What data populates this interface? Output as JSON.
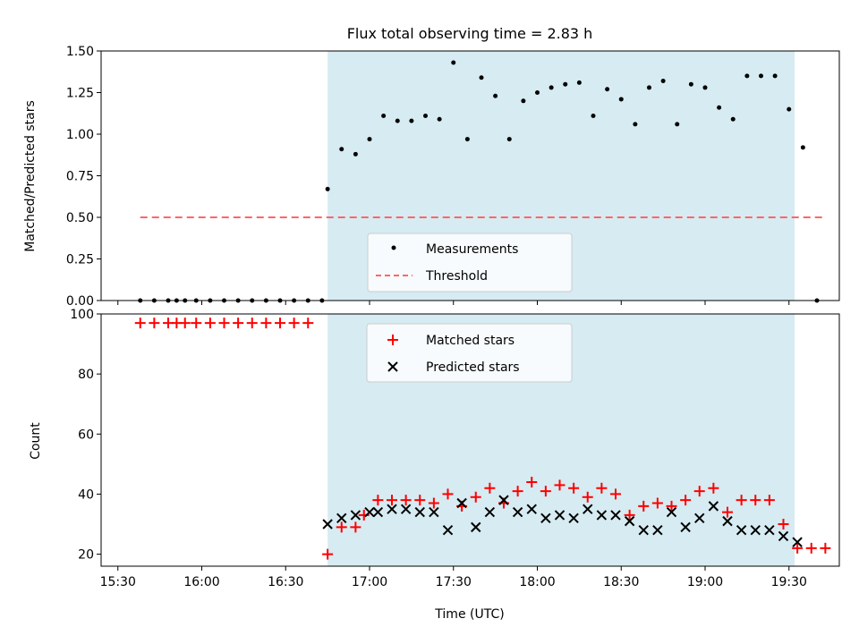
{
  "figure": {
    "title": "Flux total observing time = 2.83 h",
    "xlabel": "Time (UTC)",
    "xtick_labels": [
      "15:30",
      "16:00",
      "16:30",
      "17:00",
      "17:30",
      "18:00",
      "18:30",
      "19:00",
      "19:30"
    ],
    "shade_color": "#add8e6"
  },
  "chart_data": [
    {
      "type": "scatter",
      "title": "Flux total observing time = 2.83 h",
      "ylabel": "Matched/Predicted stars",
      "ylim": [
        0,
        1.5
      ],
      "yticks": [
        "0.00",
        "0.25",
        "0.50",
        "0.75",
        "1.00",
        "1.25",
        "1.50"
      ],
      "xlim": [
        "15:24",
        "19:48"
      ],
      "shaded_span": [
        "16:45",
        "19:32"
      ],
      "legend_position": "lower-center",
      "series": [
        {
          "name": "Measurements",
          "color": "#000000",
          "marker": "dot",
          "x": [
            "15:38",
            "15:43",
            "15:48",
            "15:51",
            "15:54",
            "15:58",
            "16:03",
            "16:08",
            "16:13",
            "16:18",
            "16:23",
            "16:28",
            "16:33",
            "16:38",
            "16:43",
            "16:45",
            "16:50",
            "16:55",
            "17:00",
            "17:05",
            "17:10",
            "17:15",
            "17:20",
            "17:25",
            "17:30",
            "17:35",
            "17:40",
            "17:45",
            "17:50",
            "17:55",
            "18:00",
            "18:05",
            "18:10",
            "18:15",
            "18:20",
            "18:25",
            "18:30",
            "18:35",
            "18:40",
            "18:45",
            "18:50",
            "18:55",
            "19:00",
            "19:05",
            "19:10",
            "19:15",
            "19:20",
            "19:25",
            "19:30",
            "19:35",
            "19:40"
          ],
          "y": [
            0,
            0,
            0,
            0,
            0,
            0,
            0,
            0,
            0,
            0,
            0,
            0,
            0,
            0,
            0,
            0.67,
            0.91,
            0.88,
            0.97,
            1.11,
            1.08,
            1.08,
            1.11,
            1.09,
            1.43,
            0.97,
            1.34,
            1.23,
            0.97,
            1.2,
            1.25,
            1.28,
            1.3,
            1.31,
            1.11,
            1.27,
            1.21,
            1.06,
            1.28,
            1.32,
            1.06,
            1.3,
            1.28,
            1.16,
            1.09,
            1.35,
            1.35,
            1.35,
            1.15,
            0.92,
            0
          ]
        },
        {
          "name": "Threshold",
          "color": "#ff6666",
          "style": "dashed",
          "x": [
            "15:38",
            "19:42"
          ],
          "y": [
            0.5,
            0.5
          ]
        }
      ]
    },
    {
      "type": "scatter",
      "ylabel": "Count",
      "ylim": [
        16,
        100
      ],
      "yticks": [
        "20",
        "40",
        "60",
        "80",
        "100"
      ],
      "xlim": [
        "15:24",
        "19:48"
      ],
      "shaded_span": [
        "16:45",
        "19:32"
      ],
      "legend_position": "top-center",
      "series": [
        {
          "name": "Matched stars",
          "color": "#ff0000",
          "marker": "plus",
          "x": [
            "15:38",
            "15:43",
            "15:48",
            "15:51",
            "15:54",
            "15:58",
            "16:03",
            "16:08",
            "16:13",
            "16:18",
            "16:23",
            "16:28",
            "16:33",
            "16:38",
            "16:45",
            "16:50",
            "16:55",
            "16:58",
            "17:03",
            "17:08",
            "17:13",
            "17:18",
            "17:23",
            "17:28",
            "17:33",
            "17:38",
            "17:43",
            "17:48",
            "17:53",
            "17:58",
            "18:03",
            "18:08",
            "18:13",
            "18:18",
            "18:23",
            "18:28",
            "18:33",
            "18:38",
            "18:43",
            "18:48",
            "18:53",
            "18:58",
            "19:03",
            "19:08",
            "19:13",
            "19:18",
            "19:23",
            "19:28",
            "19:33",
            "19:38",
            "19:43"
          ],
          "y": [
            97,
            97,
            97,
            97,
            97,
            97,
            97,
            97,
            97,
            97,
            97,
            97,
            97,
            97,
            20,
            29,
            29,
            33,
            38,
            38,
            38,
            38,
            37,
            40,
            36,
            39,
            42,
            37,
            41,
            44,
            41,
            43,
            42,
            39,
            42,
            40,
            33,
            36,
            37,
            36,
            38,
            41,
            42,
            34,
            38,
            38,
            38,
            30,
            22,
            22,
            22
          ]
        },
        {
          "name": "Predicted stars",
          "color": "#000000",
          "marker": "x",
          "x": [
            "16:45",
            "16:50",
            "16:55",
            "17:00",
            "17:03",
            "17:08",
            "17:13",
            "17:18",
            "17:23",
            "17:28",
            "17:33",
            "17:38",
            "17:43",
            "17:48",
            "17:53",
            "17:58",
            "18:03",
            "18:08",
            "18:13",
            "18:18",
            "18:23",
            "18:28",
            "18:33",
            "18:38",
            "18:43",
            "18:48",
            "18:53",
            "18:58",
            "19:03",
            "19:08",
            "19:13",
            "19:18",
            "19:23",
            "19:28",
            "19:33"
          ],
          "y": [
            30,
            32,
            33,
            34,
            34,
            35,
            35,
            34,
            34,
            28,
            37,
            29,
            34,
            38,
            34,
            35,
            32,
            33,
            32,
            35,
            33,
            33,
            31,
            28,
            28,
            34,
            29,
            32,
            36,
            31,
            28,
            28,
            28,
            26,
            24
          ]
        }
      ]
    }
  ]
}
